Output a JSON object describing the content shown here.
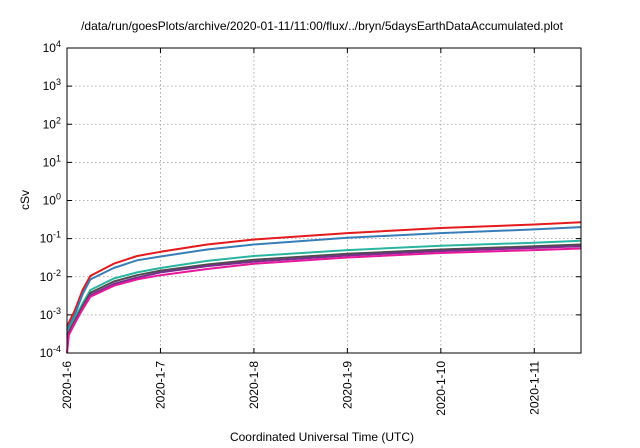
{
  "chart_data": {
    "type": "line",
    "title": "/data/run/goesPlots/archive/2020-01-11/11:00/flux/../bryn/5daysEarthDataAccumulated.plot",
    "xlabel": "Coordinated Universal Time (UTC)",
    "ylabel": "cSv",
    "y_scale": "log",
    "ylim": [
      0.0001,
      10000
    ],
    "xlim": [
      "2020-01-06",
      "2020-01-11 12:00"
    ],
    "grid": true,
    "x_ticks": [
      "2020-1-6",
      "2020-1-7",
      "2020-1-8",
      "2020-1-9",
      "2020-1-10",
      "2020-1-11"
    ],
    "y_ticks": [
      {
        "base": "10",
        "exp": "-4"
      },
      {
        "base": "10",
        "exp": "-3"
      },
      {
        "base": "10",
        "exp": "-2"
      },
      {
        "base": "10",
        "exp": "-1"
      },
      {
        "base": "10",
        "exp": "0"
      },
      {
        "base": "10",
        "exp": "1"
      },
      {
        "base": "10",
        "exp": "2"
      },
      {
        "base": "10",
        "exp": "3"
      },
      {
        "base": "10",
        "exp": "4"
      }
    ],
    "series": [
      {
        "color": "#e41a1c",
        "x": [
          "2020-01-06 00:00",
          "2020-01-06 02:00",
          "2020-01-06 04:00",
          "2020-01-06 06:00",
          "2020-01-06 12:00",
          "2020-01-06 18:00",
          "2020-01-07 00:00",
          "2020-01-07 12:00",
          "2020-01-08 00:00",
          "2020-01-09 00:00",
          "2020-01-10 00:00",
          "2020-01-11 00:00",
          "2020-01-11 12:00"
        ],
        "values": [
          0.0005,
          0.0013,
          0.0045,
          0.0105,
          0.022,
          0.035,
          0.045,
          0.07,
          0.095,
          0.14,
          0.19,
          0.235,
          0.27
        ]
      },
      {
        "color": "#377eb8",
        "x": [
          "2020-01-06 00:00",
          "2020-01-06 02:00",
          "2020-01-06 04:00",
          "2020-01-06 06:00",
          "2020-01-06 12:00",
          "2020-01-06 18:00",
          "2020-01-07 00:00",
          "2020-01-07 12:00",
          "2020-01-08 00:00",
          "2020-01-09 00:00",
          "2020-01-10 00:00",
          "2020-01-11 00:00",
          "2020-01-11 12:00"
        ],
        "values": [
          0.0004,
          0.001,
          0.0035,
          0.0085,
          0.017,
          0.027,
          0.034,
          0.052,
          0.07,
          0.105,
          0.14,
          0.175,
          0.2
        ]
      },
      {
        "color": "#2ab5a0",
        "x": [
          "2020-01-06 00:00",
          "2020-01-06 02:00",
          "2020-01-06 04:00",
          "2020-01-06 06:00",
          "2020-01-06 12:00",
          "2020-01-06 18:00",
          "2020-01-07 00:00",
          "2020-01-07 12:00",
          "2020-01-08 00:00",
          "2020-01-09 00:00",
          "2020-01-10 00:00",
          "2020-01-11 00:00",
          "2020-01-11 12:00"
        ],
        "values": [
          0.0003,
          0.0008,
          0.002,
          0.0045,
          0.009,
          0.013,
          0.017,
          0.026,
          0.035,
          0.05,
          0.065,
          0.078,
          0.088
        ]
      },
      {
        "color": "#4d4d4d",
        "x": [
          "2020-01-06 00:00",
          "2020-01-06 02:00",
          "2020-01-06 04:00",
          "2020-01-06 06:00",
          "2020-01-06 12:00",
          "2020-01-06 18:00",
          "2020-01-07 00:00",
          "2020-01-07 12:00",
          "2020-01-08 00:00",
          "2020-01-09 00:00",
          "2020-01-10 00:00",
          "2020-01-11 00:00",
          "2020-01-11 12:00"
        ],
        "values": [
          0.0003,
          0.0007,
          0.0017,
          0.0038,
          0.0075,
          0.011,
          0.0145,
          0.021,
          0.028,
          0.04,
          0.052,
          0.063,
          0.07
        ]
      },
      {
        "color": "#7b2d8e",
        "x": [
          "2020-01-06 00:00",
          "2020-01-06 02:00",
          "2020-01-06 04:00",
          "2020-01-06 06:00",
          "2020-01-06 12:00",
          "2020-01-06 18:00",
          "2020-01-07 00:00",
          "2020-01-07 12:00",
          "2020-01-08 00:00",
          "2020-01-09 00:00",
          "2020-01-10 00:00",
          "2020-01-11 00:00",
          "2020-01-11 12:00"
        ],
        "values": [
          0.00025,
          0.0006,
          0.0015,
          0.0033,
          0.0065,
          0.0095,
          0.013,
          0.019,
          0.025,
          0.036,
          0.047,
          0.057,
          0.063
        ]
      },
      {
        "color": "#e8179b",
        "x": [
          "2020-01-06 00:00",
          "2020-01-06 00:30",
          "2020-01-06 02:00",
          "2020-01-06 04:00",
          "2020-01-06 06:00",
          "2020-01-06 12:00",
          "2020-01-06 18:00",
          "2020-01-07 00:00",
          "2020-01-07 12:00",
          "2020-01-08 00:00",
          "2020-01-09 00:00",
          "2020-01-10 00:00",
          "2020-01-11 00:00",
          "2020-01-11 12:00"
        ],
        "values": [
          0.0001,
          0.0003,
          0.0006,
          0.0014,
          0.003,
          0.0058,
          0.0085,
          0.011,
          0.016,
          0.022,
          0.032,
          0.042,
          0.05,
          0.055
        ]
      }
    ]
  }
}
